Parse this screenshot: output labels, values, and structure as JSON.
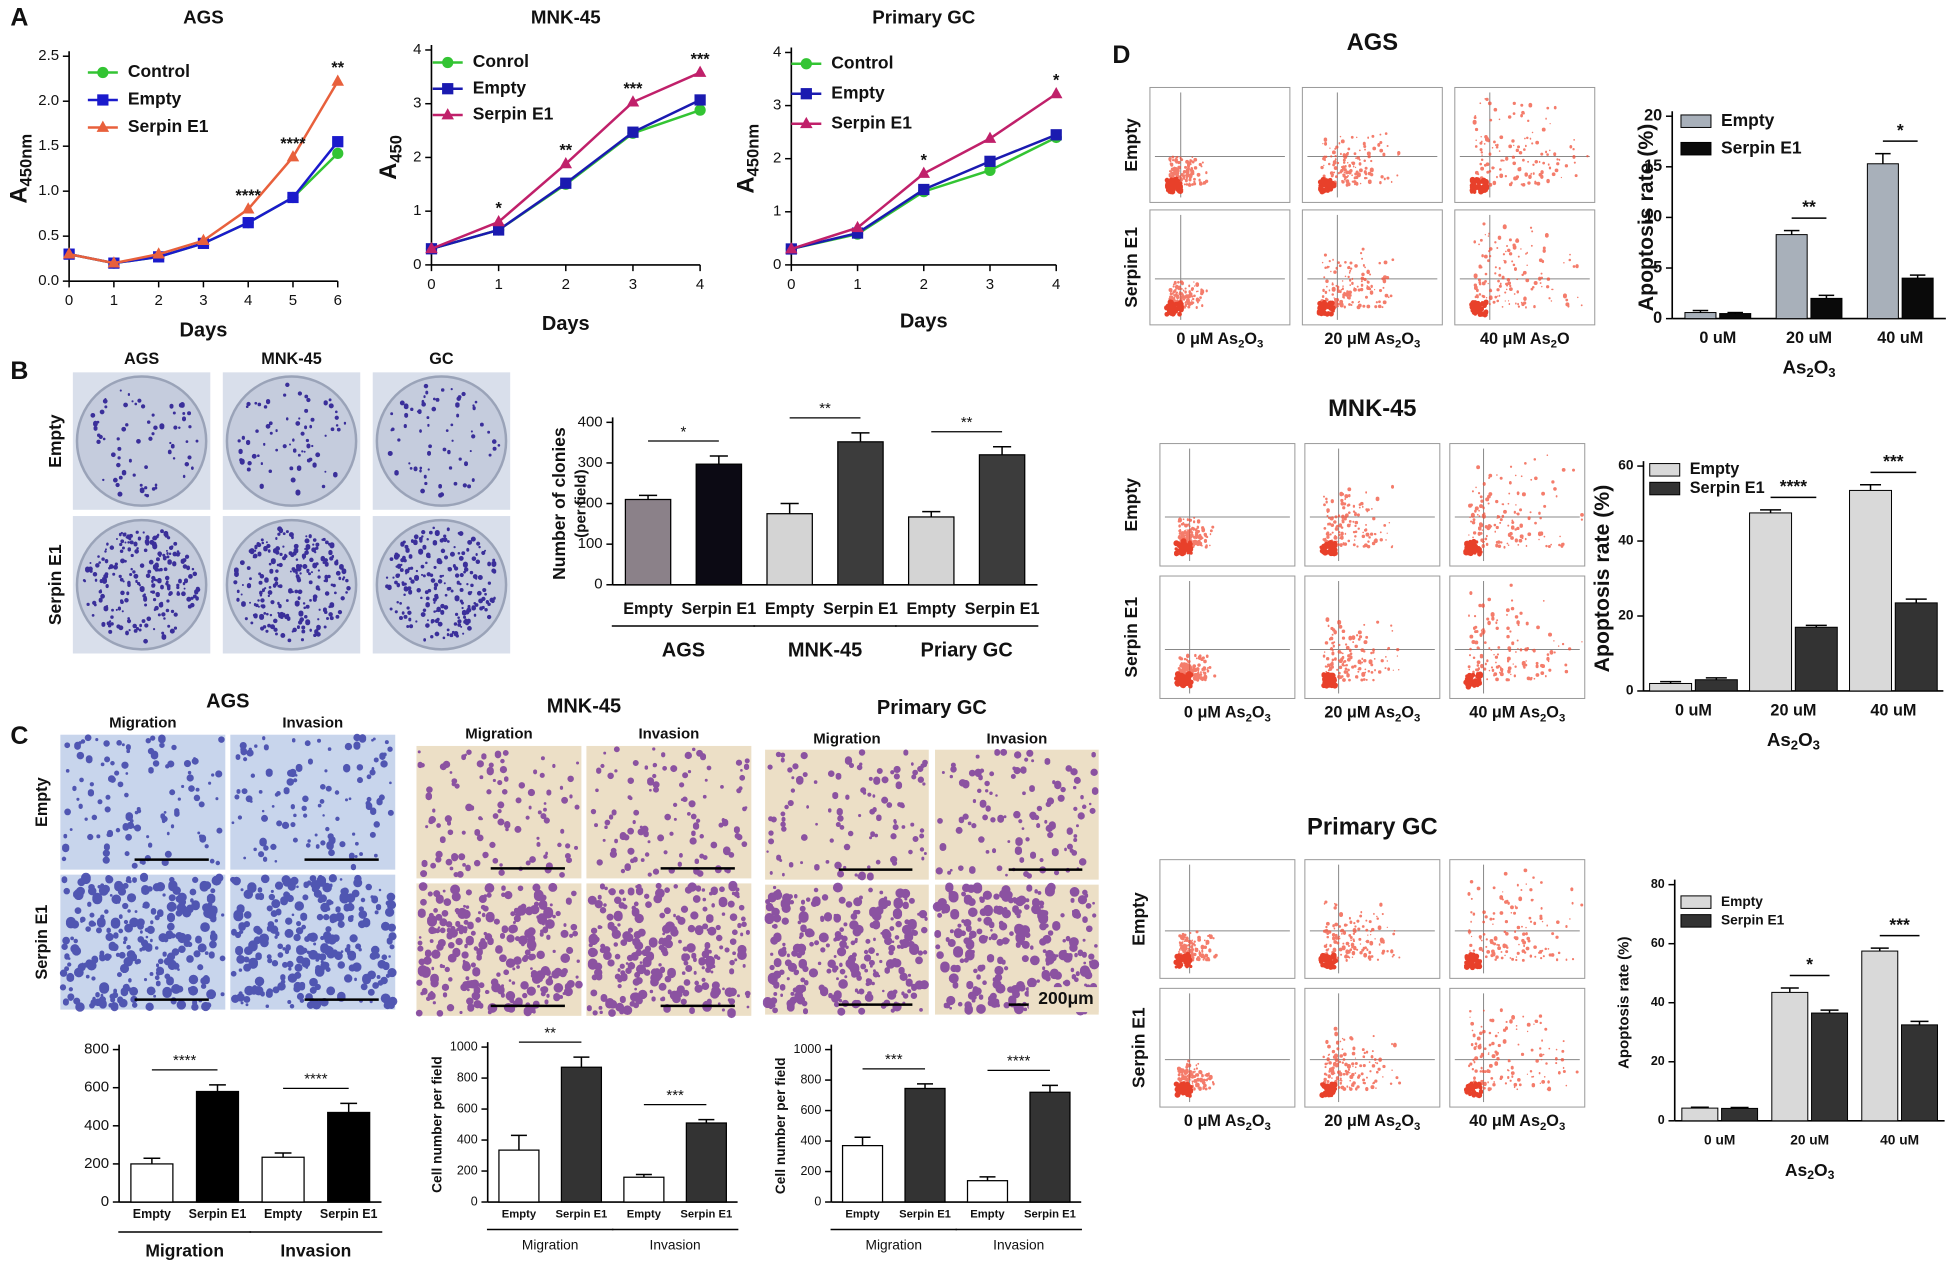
{
  "panel_labels": [
    "A",
    "B",
    "C",
    "D"
  ],
  "image_panels": [
    {
      "columns": [
        "AGS",
        "MNK-45",
        "GC"
      ],
      "rows": [
        "Empty",
        "Serpin E1"
      ]
    },
    {
      "title": "AGS",
      "columns": [
        "Migration",
        "Invasion"
      ],
      "rows": [
        "Empty",
        "Serpin E1"
      ]
    },
    {
      "title": "MNK-45",
      "columns": [
        "Migration",
        "Invasion"
      ]
    },
    {
      "title": "Primary GC",
      "columns": [
        "Migration",
        "Invasion"
      ],
      "scale_bar": "200μm"
    },
    {
      "title": "AGS",
      "rows": [
        "Empty",
        "Serpin E1"
      ],
      "columns": [
        [
          "0 μM As",
          "2",
          "O",
          "3"
        ],
        [
          "20  μM As",
          "2",
          "O",
          "3"
        ],
        [
          "40  μM As",
          "2",
          "O"
        ]
      ]
    },
    {
      "title": "MNK-45",
      "rows": [
        "Empty",
        "Serpin E1"
      ],
      "columns": [
        [
          "0 μM As",
          "2",
          "O",
          "3"
        ],
        [
          "20 μM As",
          "2",
          "O",
          "3"
        ],
        [
          "40 μM As",
          "2",
          "O",
          "3"
        ]
      ]
    },
    {
      "title": "Primary GC",
      "rows": [
        "Empty",
        "Serpin E1"
      ],
      "columns": [
        [
          "0 μM As",
          "2",
          "O",
          "3"
        ],
        [
          "20 μM As",
          "2",
          "O",
          "3"
        ],
        [
          "40 μM As",
          "2",
          "O",
          "3"
        ]
      ]
    }
  ],
  "chart_data": [
    {
      "type": "line",
      "title": "AGS",
      "xlabel": "Days",
      "ylabel": [
        "A",
        "450nm"
      ],
      "x": [
        0,
        1,
        2,
        3,
        4,
        5,
        6
      ],
      "xlim": [
        0,
        6
      ],
      "xticks": [
        0,
        1,
        2,
        3,
        4,
        5,
        6
      ],
      "ylim": [
        0,
        2.5
      ],
      "yticks": [
        {
          "value": 0,
          "label": "0.0"
        },
        {
          "value": 0.5,
          "label": "0.5"
        },
        {
          "value": 1,
          "label": "1.0"
        },
        {
          "value": 1.5,
          "label": "1.5"
        },
        {
          "value": 2,
          "label": "2.0"
        },
        {
          "value": 2.5,
          "label": "2.5"
        }
      ],
      "legend": "upper left",
      "series": [
        {
          "name": "Control",
          "color": "#33c433",
          "marker": "circle",
          "values": [
            0.3,
            0.2,
            0.27,
            0.42,
            0.65,
            0.93,
            1.42
          ]
        },
        {
          "name": "Empty",
          "color": "#1a1acc",
          "marker": "square",
          "values": [
            0.3,
            0.2,
            0.27,
            0.42,
            0.65,
            0.93,
            1.55
          ]
        },
        {
          "name": "Serpin E1",
          "color": "#e8603c",
          "marker": "triangle",
          "values": [
            0.3,
            0.2,
            0.3,
            0.45,
            0.8,
            1.38,
            2.22
          ]
        }
      ],
      "annotations": [
        {
          "x": 4,
          "text": "****"
        },
        {
          "x": 5,
          "text": "****"
        },
        {
          "x": 6,
          "text": "**"
        }
      ]
    },
    {
      "type": "line",
      "title": "MNK-45",
      "xlabel": "Days",
      "ylabel": [
        "A",
        "450"
      ],
      "x": [
        0,
        1,
        2,
        3,
        4
      ],
      "xlim": [
        0,
        4
      ],
      "xticks": [
        0,
        1,
        2,
        3,
        4
      ],
      "ylim": [
        0,
        4
      ],
      "yticks": [
        0,
        1,
        2,
        3,
        4
      ],
      "legend": "upper left",
      "series": [
        {
          "name": "Conrol",
          "color": "#33c433",
          "marker": "circle",
          "values": [
            0.3,
            0.65,
            1.5,
            2.45,
            2.88
          ]
        },
        {
          "name": "Empty",
          "color": "#1a1ab0",
          "marker": "square",
          "values": [
            0.3,
            0.65,
            1.52,
            2.47,
            3.07
          ]
        },
        {
          "name": "Serpin E1",
          "color": "#c0206a",
          "marker": "triangle",
          "values": [
            0.3,
            0.8,
            1.88,
            3.03,
            3.58
          ]
        }
      ],
      "annotations": [
        {
          "x": 1,
          "text": "*"
        },
        {
          "x": 2,
          "text": "**"
        },
        {
          "x": 3,
          "text": "***"
        },
        {
          "x": 4,
          "text": "***"
        }
      ]
    },
    {
      "type": "line",
      "title": "Primary GC",
      "xlabel": "Days",
      "ylabel": [
        "A",
        "450nm"
      ],
      "x": [
        0,
        1,
        2,
        3,
        4
      ],
      "xlim": [
        0,
        4
      ],
      "xticks": [
        0,
        1,
        2,
        3,
        4
      ],
      "ylim": [
        0,
        4
      ],
      "yticks": [
        0,
        1,
        2,
        3,
        4
      ],
      "legend": "upper left",
      "series": [
        {
          "name": "Control",
          "color": "#33c433",
          "marker": "circle",
          "values": [
            0.3,
            0.58,
            1.38,
            1.78,
            2.4
          ]
        },
        {
          "name": "Empty",
          "color": "#1a1ab0",
          "marker": "square",
          "values": [
            0.3,
            0.6,
            1.42,
            1.95,
            2.45
          ]
        },
        {
          "name": "Serpin E1",
          "color": "#c0206a",
          "marker": "triangle",
          "values": [
            0.3,
            0.7,
            1.72,
            2.38,
            3.22
          ]
        }
      ],
      "annotations": [
        {
          "x": 2,
          "text": "*"
        },
        {
          "x": 4,
          "text": "*"
        }
      ]
    },
    {
      "type": "grouped_bar",
      "ylabel": [
        "Number of clonies",
        "(per field)"
      ],
      "ylim": [
        0,
        400
      ],
      "yticks": [
        0,
        100,
        200,
        300,
        400
      ],
      "groups": [
        {
          "name": "AGS",
          "categories": [
            "Empty",
            "Serpin E1"
          ],
          "values": [
            210,
            297
          ],
          "errors": [
            10,
            20
          ],
          "colors": [
            "#8b8189",
            "#0c0a14"
          ],
          "significance": "*"
        },
        {
          "name": "MNK-45",
          "categories": [
            "Empty",
            "Serpin E1"
          ],
          "values": [
            175,
            352
          ],
          "errors": [
            25,
            22
          ],
          "colors": [
            "#d4d4d4",
            "#3c3c3c"
          ],
          "significance": "**"
        },
        {
          "name": "Priary GC",
          "categories": [
            "Empty",
            "Serpin E1"
          ],
          "values": [
            167,
            320
          ],
          "errors": [
            13,
            20
          ],
          "colors": [
            "#d4d4d4",
            "#3c3c3c"
          ],
          "significance": "**"
        }
      ]
    },
    {
      "type": "grouped_bar",
      "ylim": [
        0,
        800
      ],
      "yticks": [
        0,
        200,
        400,
        600,
        800
      ],
      "groups": [
        {
          "name": "Migration",
          "categories": [
            "Empty",
            "Serpin E1"
          ],
          "values": [
            200,
            580
          ],
          "errors": [
            30,
            35
          ],
          "colors": [
            "#ffffff",
            "#000000"
          ],
          "significance": "****"
        },
        {
          "name": "Invasion",
          "categories": [
            "Empty",
            "Serpin E1"
          ],
          "values": [
            235,
            470
          ],
          "errors": [
            22,
            48
          ],
          "colors": [
            "#ffffff",
            "#000000"
          ],
          "significance": "****"
        }
      ]
    },
    {
      "type": "grouped_bar",
      "ylabel": "Cell number per field",
      "ylim": [
        0,
        1000
      ],
      "yticks": [
        0,
        200,
        400,
        600,
        800,
        1000
      ],
      "groups": [
        {
          "name": "Migration",
          "categories": [
            "Empty",
            "Serpin E1"
          ],
          "values": [
            335,
            870
          ],
          "errors": [
            95,
            65
          ],
          "colors": [
            "#ffffff",
            "#333333"
          ],
          "significance": "**"
        },
        {
          "name": "Invasion",
          "categories": [
            "Empty",
            "Serpin E1"
          ],
          "values": [
            160,
            510
          ],
          "errors": [
            18,
            22
          ],
          "colors": [
            "#ffffff",
            "#333333"
          ],
          "significance": "***"
        }
      ]
    },
    {
      "type": "grouped_bar",
      "ylabel": "Cell number per field",
      "ylim": [
        0,
        1000
      ],
      "yticks": [
        0,
        200,
        400,
        600,
        800,
        1000
      ],
      "groups": [
        {
          "name": "Migration",
          "categories": [
            "Empty",
            "Serpin E1"
          ],
          "values": [
            370,
            745
          ],
          "errors": [
            55,
            30
          ],
          "colors": [
            "#ffffff",
            "#333333"
          ],
          "significance": "***"
        },
        {
          "name": "Invasion",
          "categories": [
            "Empty",
            "Serpin E1"
          ],
          "values": [
            140,
            720
          ],
          "errors": [
            25,
            45
          ],
          "colors": [
            "#ffffff",
            "#333333"
          ],
          "significance": "****"
        }
      ]
    },
    {
      "type": "bar",
      "ylabel": "Apoptosis rate (%)",
      "xlabel": [
        "As",
        "2",
        "O",
        "3"
      ],
      "categories": [
        "0 uM",
        "20 uM",
        "40 uM"
      ],
      "ylim": [
        0,
        20
      ],
      "yticks": [
        0,
        5,
        10,
        15,
        20
      ],
      "legend": "upper left",
      "series": [
        {
          "name": "Empty",
          "color": "#a8b0ba",
          "values": [
            0.6,
            8.3,
            15.3
          ],
          "errors": [
            0.2,
            0.4,
            1.0
          ]
        },
        {
          "name": "Serpin E1",
          "color": "#0a0a0a",
          "values": [
            0.5,
            2.0,
            4.0
          ],
          "errors": [
            0.1,
            0.3,
            0.3
          ]
        }
      ],
      "significance": [
        null,
        "**",
        "*"
      ]
    },
    {
      "type": "bar",
      "ylabel": "Apoptosis rate (%)",
      "xlabel": [
        "As",
        "2",
        "O",
        "3"
      ],
      "categories": [
        "0 uM",
        "20 uM",
        "40 uM"
      ],
      "ylim": [
        0,
        60
      ],
      "yticks": [
        0,
        20,
        40,
        60
      ],
      "legend": "upper left",
      "series": [
        {
          "name": "Empty",
          "color": "#d9d9d9",
          "values": [
            2,
            47.5,
            53.5
          ],
          "errors": [
            0.5,
            0.8,
            1.5
          ]
        },
        {
          "name": "Serpin E1",
          "color": "#333333",
          "values": [
            3,
            17,
            23.5
          ],
          "errors": [
            0.5,
            0.5,
            1
          ]
        }
      ],
      "significance": [
        null,
        "****",
        "***"
      ]
    },
    {
      "type": "bar",
      "ylabel": "Apoptosis rate (%)",
      "xlabel": [
        "As",
        "2",
        "O",
        "3"
      ],
      "categories": [
        "0 uM",
        "20 uM",
        "40 uM"
      ],
      "ylim": [
        0,
        80
      ],
      "yticks": [
        0,
        20,
        40,
        60,
        80
      ],
      "legend": "upper left",
      "series": [
        {
          "name": "Empty",
          "color": "#d9d9d9",
          "values": [
            4.3,
            43.5,
            57.5
          ],
          "errors": [
            0.3,
            1.5,
            1
          ]
        },
        {
          "name": "Serpin E1",
          "color": "#333333",
          "values": [
            4.2,
            36.5,
            32.5
          ],
          "errors": [
            0.3,
            1,
            1.2
          ]
        }
      ],
      "significance": [
        null,
        "*",
        "***"
      ]
    }
  ]
}
